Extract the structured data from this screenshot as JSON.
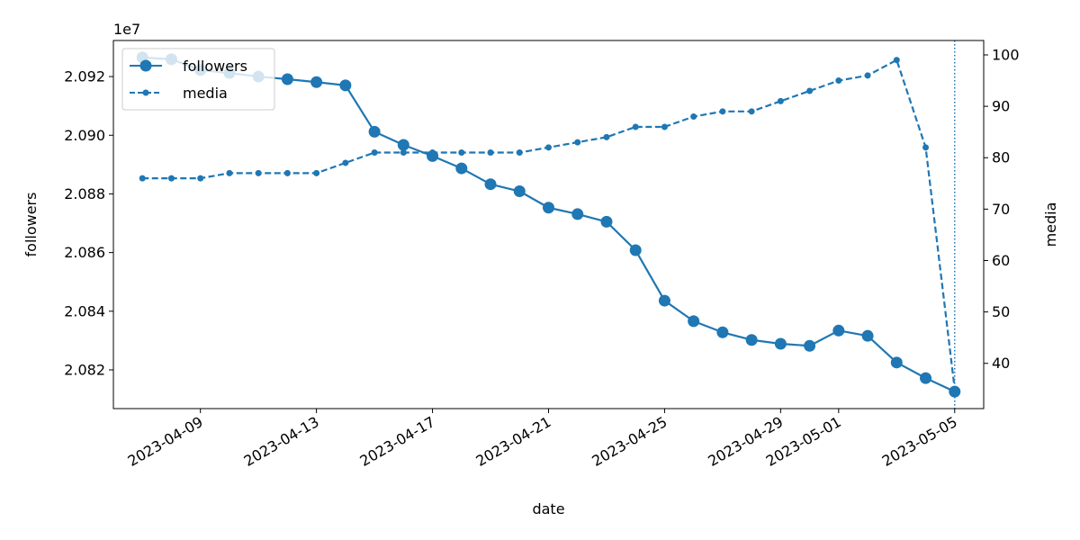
{
  "chart_data": {
    "type": "line",
    "x_is_date": true,
    "x": [
      "2023-04-07",
      "2023-04-08",
      "2023-04-09",
      "2023-04-10",
      "2023-04-11",
      "2023-04-12",
      "2023-04-13",
      "2023-04-14",
      "2023-04-15",
      "2023-04-16",
      "2023-04-17",
      "2023-04-18",
      "2023-04-19",
      "2023-04-20",
      "2023-04-21",
      "2023-04-22",
      "2023-04-23",
      "2023-04-24",
      "2023-04-25",
      "2023-04-26",
      "2023-04-27",
      "2023-04-28",
      "2023-04-29",
      "2023-04-30",
      "2023-05-01",
      "2023-05-02",
      "2023-05-03",
      "2023-05-04",
      "2023-05-05"
    ],
    "series": [
      {
        "name": "followers",
        "axis": "left",
        "style": "solid",
        "marker": "large-circle",
        "color": "#1f77b4",
        "values": [
          20926500,
          20925900,
          20922200,
          20921200,
          20920000,
          20919100,
          20918100,
          20917000,
          20901200,
          20896700,
          20892900,
          20888700,
          20883300,
          20880900,
          20875300,
          20873100,
          20870500,
          20860800,
          20843600,
          20836600,
          20832800,
          20830200,
          20828900,
          20828200,
          20833400,
          20831600,
          20822500,
          20817200,
          20812600
        ]
      },
      {
        "name": "media",
        "axis": "right",
        "style": "dashed",
        "marker": "small-dot",
        "color": "#1f77b4",
        "values": [
          76,
          76,
          76,
          77,
          77,
          77,
          77,
          79,
          81,
          81,
          81,
          81,
          81,
          81,
          82,
          83,
          84,
          86,
          86,
          88,
          89,
          89,
          91,
          93,
          95,
          96,
          99,
          82,
          35
        ]
      }
    ],
    "vline_x": "2023-05-05",
    "x_ticks": [
      "2023-04-09",
      "2023-04-13",
      "2023-04-17",
      "2023-04-21",
      "2023-04-25",
      "2023-04-29",
      "2023-05-01",
      "2023-05-05"
    ],
    "y_left": {
      "label": "followers",
      "offset_text": "1e7",
      "ticks": [
        20820000,
        20840000,
        20860000,
        20880000,
        20900000,
        20920000
      ],
      "tick_labels": [
        "2.082",
        "2.084",
        "2.086",
        "2.088",
        "2.090",
        "2.092"
      ],
      "lim": [
        20806800,
        20932300
      ]
    },
    "y_right": {
      "label": "media",
      "ticks": [
        40,
        50,
        60,
        70,
        80,
        90,
        100
      ],
      "tick_labels": [
        "40",
        "50",
        "60",
        "70",
        "80",
        "90",
        "100"
      ],
      "lim": [
        31.2,
        102.8
      ]
    },
    "x_lim": [
      "2023-04-06",
      "2023-05-06"
    ],
    "xlabel": "date",
    "legend": {
      "placement": "top-left",
      "entries": [
        "followers",
        "media"
      ]
    },
    "grid": false
  }
}
